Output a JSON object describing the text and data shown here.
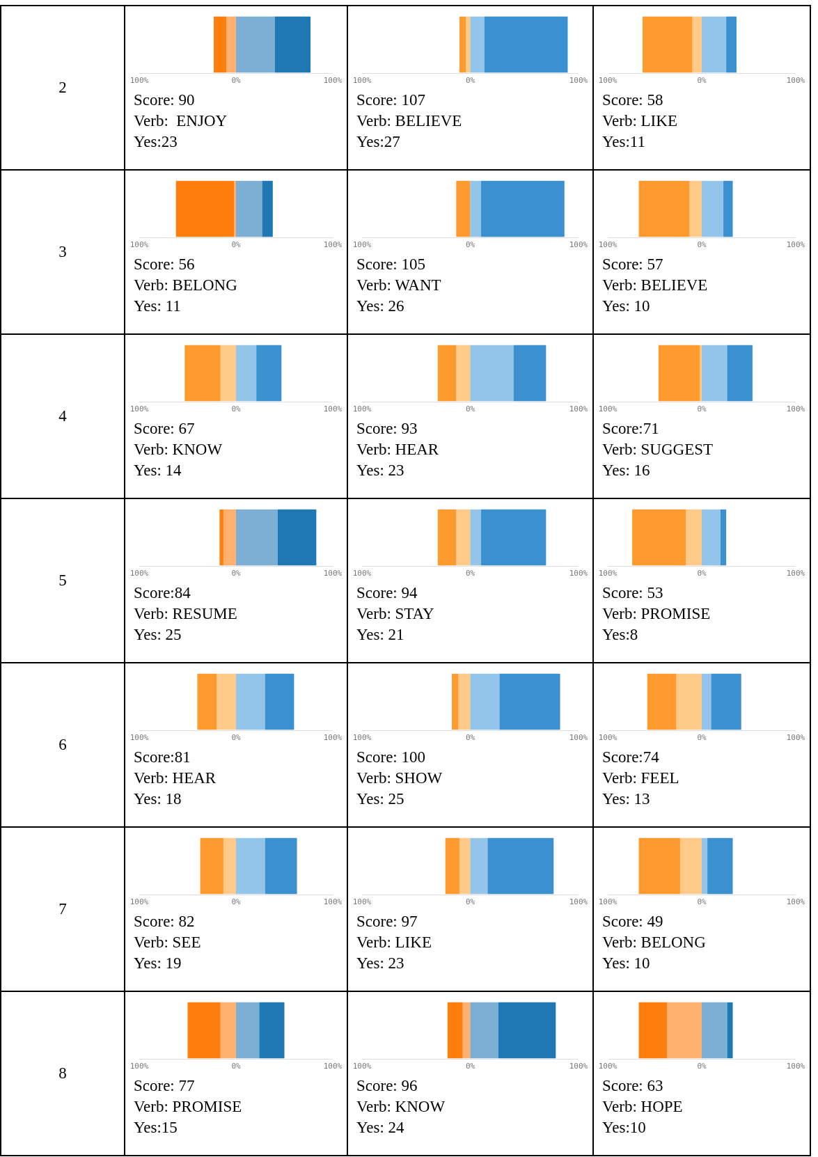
{
  "chart_data": [
    {
      "type": "other",
      "title": "2"
    },
    {
      "type": "bar",
      "orientation": "horizontal",
      "stacked": true,
      "categories": [
        null
      ],
      "xlim": [
        -100,
        100
      ],
      "xticks": [
        {
          "value": -100,
          "label": "100%"
        },
        {
          "value": 0,
          "label": "0%"
        },
        {
          "value": 100,
          "label": "100%"
        }
      ],
      "grid": "x",
      "series": [
        {
          "color": "#ffb06e",
          "values": [
            -10
          ]
        },
        {
          "color": "#ff7f0e",
          "values": [
            -13
          ]
        },
        {
          "color": "#7bafd4",
          "values": [
            40
          ]
        },
        {
          "color": "#1f77b4",
          "values": [
            37
          ]
        }
      ],
      "annotations": [
        "Score: 90",
        "Verb:  ENJOY",
        "Yes:23"
      ]
    },
    {
      "type": "bar",
      "orientation": "horizontal",
      "stacked": true,
      "categories": [
        null
      ],
      "xlim": [
        -100,
        100
      ],
      "xticks": [
        {
          "value": -100,
          "label": "100%"
        },
        {
          "value": 0,
          "label": "0%"
        },
        {
          "value": 100,
          "label": "100%"
        }
      ],
      "grid": "x",
      "series": [
        {
          "color": "#ffc987",
          "values": [
            -4
          ]
        },
        {
          "color": "#ff9a2e",
          "values": [
            -6
          ]
        },
        {
          "color": "#93c5ea",
          "values": [
            13
          ]
        },
        {
          "color": "#3b91d0",
          "values": [
            77
          ]
        }
      ],
      "annotations": [
        "Score: 107",
        "Verb: BELIEVE",
        "Yes:27"
      ]
    },
    {
      "type": "bar",
      "orientation": "horizontal",
      "stacked": true,
      "categories": [
        null
      ],
      "xlim": [
        -100,
        100
      ],
      "xticks": [
        {
          "value": -100,
          "label": "100%"
        },
        {
          "value": 0,
          "label": "0%"
        },
        {
          "value": 100,
          "label": "100%"
        }
      ],
      "grid": "x",
      "series": [
        {
          "color": "#ffc987",
          "values": [
            -10
          ]
        },
        {
          "color": "#ff9a2e",
          "values": [
            -53
          ]
        },
        {
          "color": "#93c5ea",
          "values": [
            26
          ]
        },
        {
          "color": "#3b91d0",
          "values": [
            11
          ]
        }
      ],
      "annotations": [
        "Score: 58",
        "Verb: LIKE",
        "Yes:11"
      ]
    },
    {
      "type": "other",
      "title": "3"
    },
    {
      "type": "bar",
      "orientation": "horizontal",
      "stacked": true,
      "categories": [
        null
      ],
      "xlim": [
        -100,
        100
      ],
      "xticks": [
        {
          "value": -100,
          "label": "100%"
        },
        {
          "value": 0,
          "label": "0%"
        },
        {
          "value": 100,
          "label": "100%"
        }
      ],
      "grid": "x",
      "series": [
        {
          "color": "#ffb06e",
          "values": [
            -2
          ]
        },
        {
          "color": "#ff7f0e",
          "values": [
            -60
          ]
        },
        {
          "color": "#7bafd4",
          "values": [
            27
          ]
        },
        {
          "color": "#1f77b4",
          "values": [
            11
          ]
        }
      ],
      "annotations": [
        "Score: 56",
        "Verb: BELONG",
        "Yes: 11"
      ]
    },
    {
      "type": "bar",
      "orientation": "horizontal",
      "stacked": true,
      "categories": [
        null
      ],
      "xlim": [
        -100,
        100
      ],
      "xticks": [
        {
          "value": -100,
          "label": "100%"
        },
        {
          "value": 0,
          "label": "0%"
        },
        {
          "value": 100,
          "label": "100%"
        }
      ],
      "grid": "x",
      "series": [
        {
          "color": "#ffc987",
          "values": [
            0
          ]
        },
        {
          "color": "#ff9a2e",
          "values": [
            -13
          ]
        },
        {
          "color": "#93c5ea",
          "values": [
            10
          ]
        },
        {
          "color": "#3b91d0",
          "values": [
            77
          ]
        }
      ],
      "annotations": [
        "Score: 105",
        "Verb: WANT",
        "Yes: 26"
      ]
    },
    {
      "type": "bar",
      "orientation": "horizontal",
      "stacked": true,
      "categories": [
        null
      ],
      "xlim": [
        -100,
        100
      ],
      "xticks": [
        {
          "value": -100,
          "label": "100%"
        },
        {
          "value": 0,
          "label": "0%"
        },
        {
          "value": 100,
          "label": "100%"
        }
      ],
      "grid": "x",
      "series": [
        {
          "color": "#ffc987",
          "values": [
            -13
          ]
        },
        {
          "color": "#ff9a2e",
          "values": [
            -54
          ]
        },
        {
          "color": "#93c5ea",
          "values": [
            23
          ]
        },
        {
          "color": "#3b91d0",
          "values": [
            10
          ]
        }
      ],
      "annotations": [
        "Score: 57",
        "Verb: BELIEVE",
        "Yes: 10"
      ]
    },
    {
      "type": "other",
      "title": "4"
    },
    {
      "type": "bar",
      "orientation": "horizontal",
      "stacked": true,
      "categories": [
        null
      ],
      "xlim": [
        -100,
        100
      ],
      "xticks": [
        {
          "value": -100,
          "label": "100%"
        },
        {
          "value": 0,
          "label": "0%"
        },
        {
          "value": 100,
          "label": "100%"
        }
      ],
      "grid": "x",
      "series": [
        {
          "color": "#ffc987",
          "values": [
            -16
          ]
        },
        {
          "color": "#ff9a2e",
          "values": [
            -37
          ]
        },
        {
          "color": "#93c5ea",
          "values": [
            21
          ]
        },
        {
          "color": "#3b91d0",
          "values": [
            26
          ]
        }
      ],
      "annotations": [
        "Score: 67",
        "Verb: KNOW",
        "Yes: 14"
      ]
    },
    {
      "type": "bar",
      "orientation": "horizontal",
      "stacked": true,
      "categories": [
        null
      ],
      "xlim": [
        -100,
        100
      ],
      "xticks": [
        {
          "value": -100,
          "label": "100%"
        },
        {
          "value": 0,
          "label": "0%"
        },
        {
          "value": 100,
          "label": "100%"
        }
      ],
      "grid": "x",
      "series": [
        {
          "color": "#ffc987",
          "values": [
            -13
          ]
        },
        {
          "color": "#ff9a2e",
          "values": [
            -17
          ]
        },
        {
          "color": "#93c5ea",
          "values": [
            40
          ]
        },
        {
          "color": "#3b91d0",
          "values": [
            30
          ]
        }
      ],
      "annotations": [
        "Score: 93",
        "Verb: HEAR",
        "Yes: 23"
      ]
    },
    {
      "type": "bar",
      "orientation": "horizontal",
      "stacked": true,
      "categories": [
        null
      ],
      "xlim": [
        -100,
        100
      ],
      "xticks": [
        {
          "value": -100,
          "label": "100%"
        },
        {
          "value": 0,
          "label": "0%"
        },
        {
          "value": 100,
          "label": "100%"
        }
      ],
      "grid": "x",
      "series": [
        {
          "color": "#ffc987",
          "values": [
            -2
          ]
        },
        {
          "color": "#ff9a2e",
          "values": [
            -44
          ]
        },
        {
          "color": "#93c5ea",
          "values": [
            27
          ]
        },
        {
          "color": "#3b91d0",
          "values": [
            27
          ]
        }
      ],
      "annotations": [
        "Score:71",
        "Verb: SUGGEST",
        "Yes: 16"
      ]
    },
    {
      "type": "other",
      "title": "5"
    },
    {
      "type": "bar",
      "orientation": "horizontal",
      "stacked": true,
      "categories": [
        null
      ],
      "xlim": [
        -100,
        100
      ],
      "xticks": [
        {
          "value": -100,
          "label": "100%"
        },
        {
          "value": 0,
          "label": "0%"
        },
        {
          "value": 100,
          "label": "100%"
        }
      ],
      "grid": "x",
      "series": [
        {
          "color": "#ffb06e",
          "values": [
            -13
          ]
        },
        {
          "color": "#ff7f0e",
          "values": [
            -4
          ]
        },
        {
          "color": "#7bafd4",
          "values": [
            43
          ]
        },
        {
          "color": "#1f77b4",
          "values": [
            40
          ]
        }
      ],
      "annotations": [
        "Score:84",
        "Verb: RESUME",
        "Yes: 25"
      ]
    },
    {
      "type": "bar",
      "orientation": "horizontal",
      "stacked": true,
      "categories": [
        null
      ],
      "xlim": [
        -100,
        100
      ],
      "xticks": [
        {
          "value": -100,
          "label": "100%"
        },
        {
          "value": 0,
          "label": "0%"
        },
        {
          "value": 100,
          "label": "100%"
        }
      ],
      "grid": "x",
      "series": [
        {
          "color": "#ffc987",
          "values": [
            -13
          ]
        },
        {
          "color": "#ff9a2e",
          "values": [
            -17
          ]
        },
        {
          "color": "#93c5ea",
          "values": [
            10
          ]
        },
        {
          "color": "#3b91d0",
          "values": [
            60
          ]
        }
      ],
      "annotations": [
        "Score: 94",
        "Verb: STAY",
        "Yes: 21"
      ]
    },
    {
      "type": "bar",
      "orientation": "horizontal",
      "stacked": true,
      "categories": [
        null
      ],
      "xlim": [
        -100,
        100
      ],
      "xticks": [
        {
          "value": -100,
          "label": "100%"
        },
        {
          "value": 0,
          "label": "0%"
        },
        {
          "value": 100,
          "label": "100%"
        }
      ],
      "grid": "x",
      "series": [
        {
          "color": "#ffc987",
          "values": [
            -17
          ]
        },
        {
          "color": "#ff9a2e",
          "values": [
            -57
          ]
        },
        {
          "color": "#93c5ea",
          "values": [
            20
          ]
        },
        {
          "color": "#3b91d0",
          "values": [
            6
          ]
        }
      ],
      "annotations": [
        "Score: 53",
        "Verb: PROMISE",
        "Yes:8"
      ]
    },
    {
      "type": "other",
      "title": "6"
    },
    {
      "type": "bar",
      "orientation": "horizontal",
      "stacked": true,
      "categories": [
        null
      ],
      "xlim": [
        -100,
        100
      ],
      "xticks": [
        {
          "value": -100,
          "label": "100%"
        },
        {
          "value": 0,
          "label": "0%"
        },
        {
          "value": 100,
          "label": "100%"
        }
      ],
      "grid": "x",
      "series": [
        {
          "color": "#ffc987",
          "values": [
            -20
          ]
        },
        {
          "color": "#ff9a2e",
          "values": [
            -20
          ]
        },
        {
          "color": "#93c5ea",
          "values": [
            30
          ]
        },
        {
          "color": "#3b91d0",
          "values": [
            30
          ]
        }
      ],
      "annotations": [
        "Score:81",
        "Verb: HEAR",
        "Yes: 18"
      ]
    },
    {
      "type": "bar",
      "orientation": "horizontal",
      "stacked": true,
      "categories": [
        null
      ],
      "xlim": [
        -100,
        100
      ],
      "xticks": [
        {
          "value": -100,
          "label": "100%"
        },
        {
          "value": 0,
          "label": "0%"
        },
        {
          "value": 100,
          "label": "100%"
        }
      ],
      "grid": "x",
      "series": [
        {
          "color": "#ffc987",
          "values": [
            -11
          ]
        },
        {
          "color": "#ff9a2e",
          "values": [
            -6
          ]
        },
        {
          "color": "#93c5ea",
          "values": [
            27
          ]
        },
        {
          "color": "#3b91d0",
          "values": [
            56
          ]
        }
      ],
      "annotations": [
        "Score: 100",
        "Verb: SHOW",
        "Yes: 25"
      ]
    },
    {
      "type": "bar",
      "orientation": "horizontal",
      "stacked": true,
      "categories": [
        null
      ],
      "xlim": [
        -100,
        100
      ],
      "xticks": [
        {
          "value": -100,
          "label": "100%"
        },
        {
          "value": 0,
          "label": "0%"
        },
        {
          "value": 100,
          "label": "100%"
        }
      ],
      "grid": "x",
      "series": [
        {
          "color": "#ffc987",
          "values": [
            -27
          ]
        },
        {
          "color": "#ff9a2e",
          "values": [
            -31
          ]
        },
        {
          "color": "#93c5ea",
          "values": [
            10
          ]
        },
        {
          "color": "#3b91d0",
          "values": [
            32
          ]
        }
      ],
      "annotations": [
        "Score:74",
        "Verb: FEEL",
        "Yes: 13"
      ]
    },
    {
      "type": "other",
      "title": "7"
    },
    {
      "type": "bar",
      "orientation": "horizontal",
      "stacked": true,
      "categories": [
        null
      ],
      "xlim": [
        -100,
        100
      ],
      "xticks": [
        {
          "value": -100,
          "label": "100%"
        },
        {
          "value": 0,
          "label": "0%"
        },
        {
          "value": 100,
          "label": "100%"
        }
      ],
      "grid": "x",
      "series": [
        {
          "color": "#ffc987",
          "values": [
            -13
          ]
        },
        {
          "color": "#ff9a2e",
          "values": [
            -24
          ]
        },
        {
          "color": "#93c5ea",
          "values": [
            30
          ]
        },
        {
          "color": "#3b91d0",
          "values": [
            33
          ]
        }
      ],
      "annotations": [
        "Score: 82",
        "Verb: SEE",
        "Yes: 19"
      ]
    },
    {
      "type": "bar",
      "orientation": "horizontal",
      "stacked": true,
      "categories": [
        null
      ],
      "xlim": [
        -100,
        100
      ],
      "xticks": [
        {
          "value": -100,
          "label": "100%"
        },
        {
          "value": 0,
          "label": "0%"
        },
        {
          "value": 100,
          "label": "100%"
        }
      ],
      "grid": "x",
      "series": [
        {
          "color": "#ffc987",
          "values": [
            -10
          ]
        },
        {
          "color": "#ff9a2e",
          "values": [
            -13
          ]
        },
        {
          "color": "#93c5ea",
          "values": [
            16
          ]
        },
        {
          "color": "#3b91d0",
          "values": [
            61
          ]
        }
      ],
      "annotations": [
        "Score: 97",
        "Verb: LIKE",
        "Yes: 23"
      ]
    },
    {
      "type": "bar",
      "orientation": "horizontal",
      "stacked": true,
      "categories": [
        null
      ],
      "xlim": [
        -100,
        100
      ],
      "xticks": [
        {
          "value": -100,
          "label": "100%"
        },
        {
          "value": 0,
          "label": "0%"
        },
        {
          "value": 100,
          "label": "100%"
        }
      ],
      "grid": "x",
      "series": [
        {
          "color": "#ffc987",
          "values": [
            -23
          ]
        },
        {
          "color": "#ff9a2e",
          "values": [
            -44
          ]
        },
        {
          "color": "#93c5ea",
          "values": [
            6
          ]
        },
        {
          "color": "#3b91d0",
          "values": [
            27
          ]
        }
      ],
      "annotations": [
        "Score: 49",
        "Verb: BELONG",
        "Yes: 10"
      ]
    },
    {
      "type": "other",
      "title": "8"
    },
    {
      "type": "bar",
      "orientation": "horizontal",
      "stacked": true,
      "categories": [
        null
      ],
      "xlim": [
        -100,
        100
      ],
      "xticks": [
        {
          "value": -100,
          "label": "100%"
        },
        {
          "value": 0,
          "label": "0%"
        },
        {
          "value": 100,
          "label": "100%"
        }
      ],
      "grid": "x",
      "series": [
        {
          "color": "#ffb06e",
          "values": [
            -16
          ]
        },
        {
          "color": "#ff7f0e",
          "values": [
            -34
          ]
        },
        {
          "color": "#7bafd4",
          "values": [
            24
          ]
        },
        {
          "color": "#1f77b4",
          "values": [
            26
          ]
        }
      ],
      "annotations": [
        "Score: 77",
        "Verb: PROMISE",
        "Yes:15"
      ]
    },
    {
      "type": "bar",
      "orientation": "horizontal",
      "stacked": true,
      "categories": [
        null
      ],
      "xlim": [
        -100,
        100
      ],
      "xticks": [
        {
          "value": -100,
          "label": "100%"
        },
        {
          "value": 0,
          "label": "0%"
        },
        {
          "value": 100,
          "label": "100%"
        }
      ],
      "grid": "x",
      "series": [
        {
          "color": "#ffb06e",
          "values": [
            -7
          ]
        },
        {
          "color": "#ff7f0e",
          "values": [
            -14
          ]
        },
        {
          "color": "#7bafd4",
          "values": [
            26
          ]
        },
        {
          "color": "#1f77b4",
          "values": [
            53
          ]
        }
      ],
      "annotations": [
        "Score: 96",
        "Verb: KNOW",
        "Yes: 24"
      ]
    },
    {
      "type": "bar",
      "orientation": "horizontal",
      "stacked": true,
      "categories": [
        null
      ],
      "xlim": [
        -100,
        100
      ],
      "xticks": [
        {
          "value": -100,
          "label": "100%"
        },
        {
          "value": 0,
          "label": "0%"
        },
        {
          "value": 100,
          "label": "100%"
        }
      ],
      "grid": "x",
      "series": [
        {
          "color": "#ffb06e",
          "values": [
            -37
          ]
        },
        {
          "color": "#ff7f0e",
          "values": [
            -30
          ]
        },
        {
          "color": "#7bafd4",
          "values": [
            27
          ]
        },
        {
          "color": "#1f77b4",
          "values": [
            6
          ]
        }
      ],
      "annotations": [
        "Score: 63",
        "Verb: HOPE",
        "Yes:10"
      ]
    }
  ]
}
